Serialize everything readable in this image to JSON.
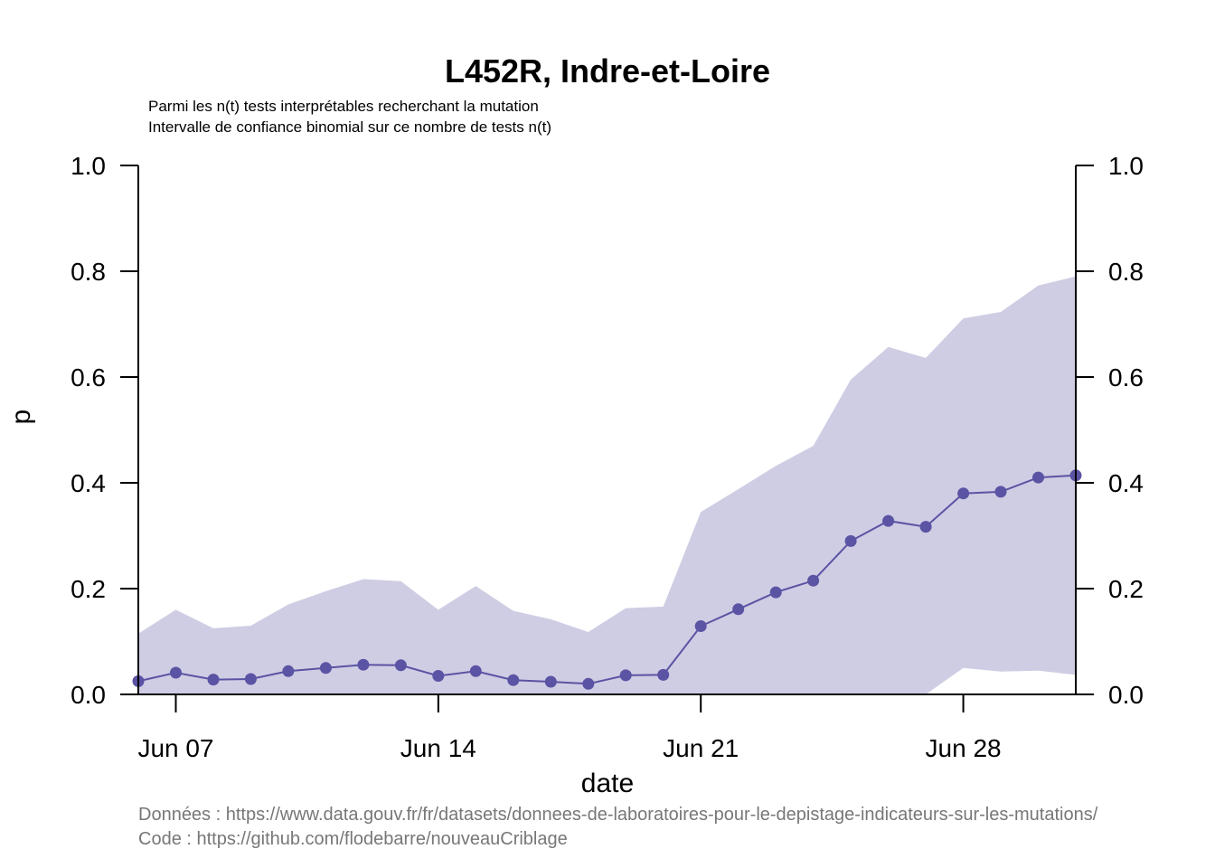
{
  "chart_data": {
    "type": "line",
    "title": "L452R, Indre-et-Loire",
    "subtitle_lines": [
      "Parmi les n(t) tests interprétables recherchant la mutation",
      "Intervalle de confiance binomial sur ce nombre de tests n(t)"
    ],
    "xlabel": "date",
    "ylabel": "p",
    "ylim": [
      0,
      1
    ],
    "y_ticks": [
      "0.0",
      "0.2",
      "0.4",
      "0.6",
      "0.8",
      "1.0"
    ],
    "x_ticks": [
      {
        "label": "Jun 07",
        "date": "2021-06-07"
      },
      {
        "label": "Jun 14",
        "date": "2021-06-14"
      },
      {
        "label": "Jun 21",
        "date": "2021-06-21"
      },
      {
        "label": "Jun 28",
        "date": "2021-06-28"
      }
    ],
    "xlim": [
      "2021-06-06",
      "2021-07-01"
    ],
    "grid": false,
    "colors": {
      "line": "#5b53a3",
      "band": "#cfcde4"
    },
    "series": [
      {
        "x": [
          "2021-06-06",
          "2021-06-07",
          "2021-06-08",
          "2021-06-09",
          "2021-06-10",
          "2021-06-11",
          "2021-06-12",
          "2021-06-13",
          "2021-06-14",
          "2021-06-15",
          "2021-06-16",
          "2021-06-17",
          "2021-06-18",
          "2021-06-19",
          "2021-06-20",
          "2021-06-21",
          "2021-06-22",
          "2021-06-23",
          "2021-06-24",
          "2021-06-25",
          "2021-06-26",
          "2021-06-27",
          "2021-06-28",
          "2021-06-29",
          "2021-06-30",
          "2021-07-01"
        ],
        "values": [
          0.025,
          0.041,
          0.028,
          0.029,
          0.044,
          0.05,
          0.056,
          0.055,
          0.035,
          0.044,
          0.027,
          0.024,
          0.02,
          0.036,
          0.037,
          0.129,
          0.161,
          0.193,
          0.215,
          0.29,
          0.328,
          0.317,
          0.38,
          0.383,
          0.41,
          0.414
        ],
        "ci_upper": [
          0.115,
          0.16,
          0.125,
          0.13,
          0.17,
          0.195,
          0.218,
          0.214,
          0.16,
          0.205,
          0.158,
          0.142,
          0.118,
          0.163,
          0.166,
          0.345,
          0.388,
          0.432,
          0.47,
          0.595,
          0.657,
          0.636,
          0.711,
          0.723,
          0.773,
          0.79
        ],
        "ci_lower": [
          0,
          0,
          0,
          0,
          0,
          0,
          0,
          0,
          0,
          0,
          0,
          0,
          0,
          0,
          0,
          0,
          0,
          0,
          0,
          0,
          0,
          0,
          0.05,
          0.043,
          0.045,
          0.037
        ]
      }
    ]
  },
  "footer": {
    "data_source": "Données : https://www.data.gouv.fr/fr/datasets/donnees-de-laboratoires-pour-le-depistage-indicateurs-sur-les-mutations/",
    "code_source": "Code : https://github.com/flodebarre/nouveauCriblage"
  }
}
